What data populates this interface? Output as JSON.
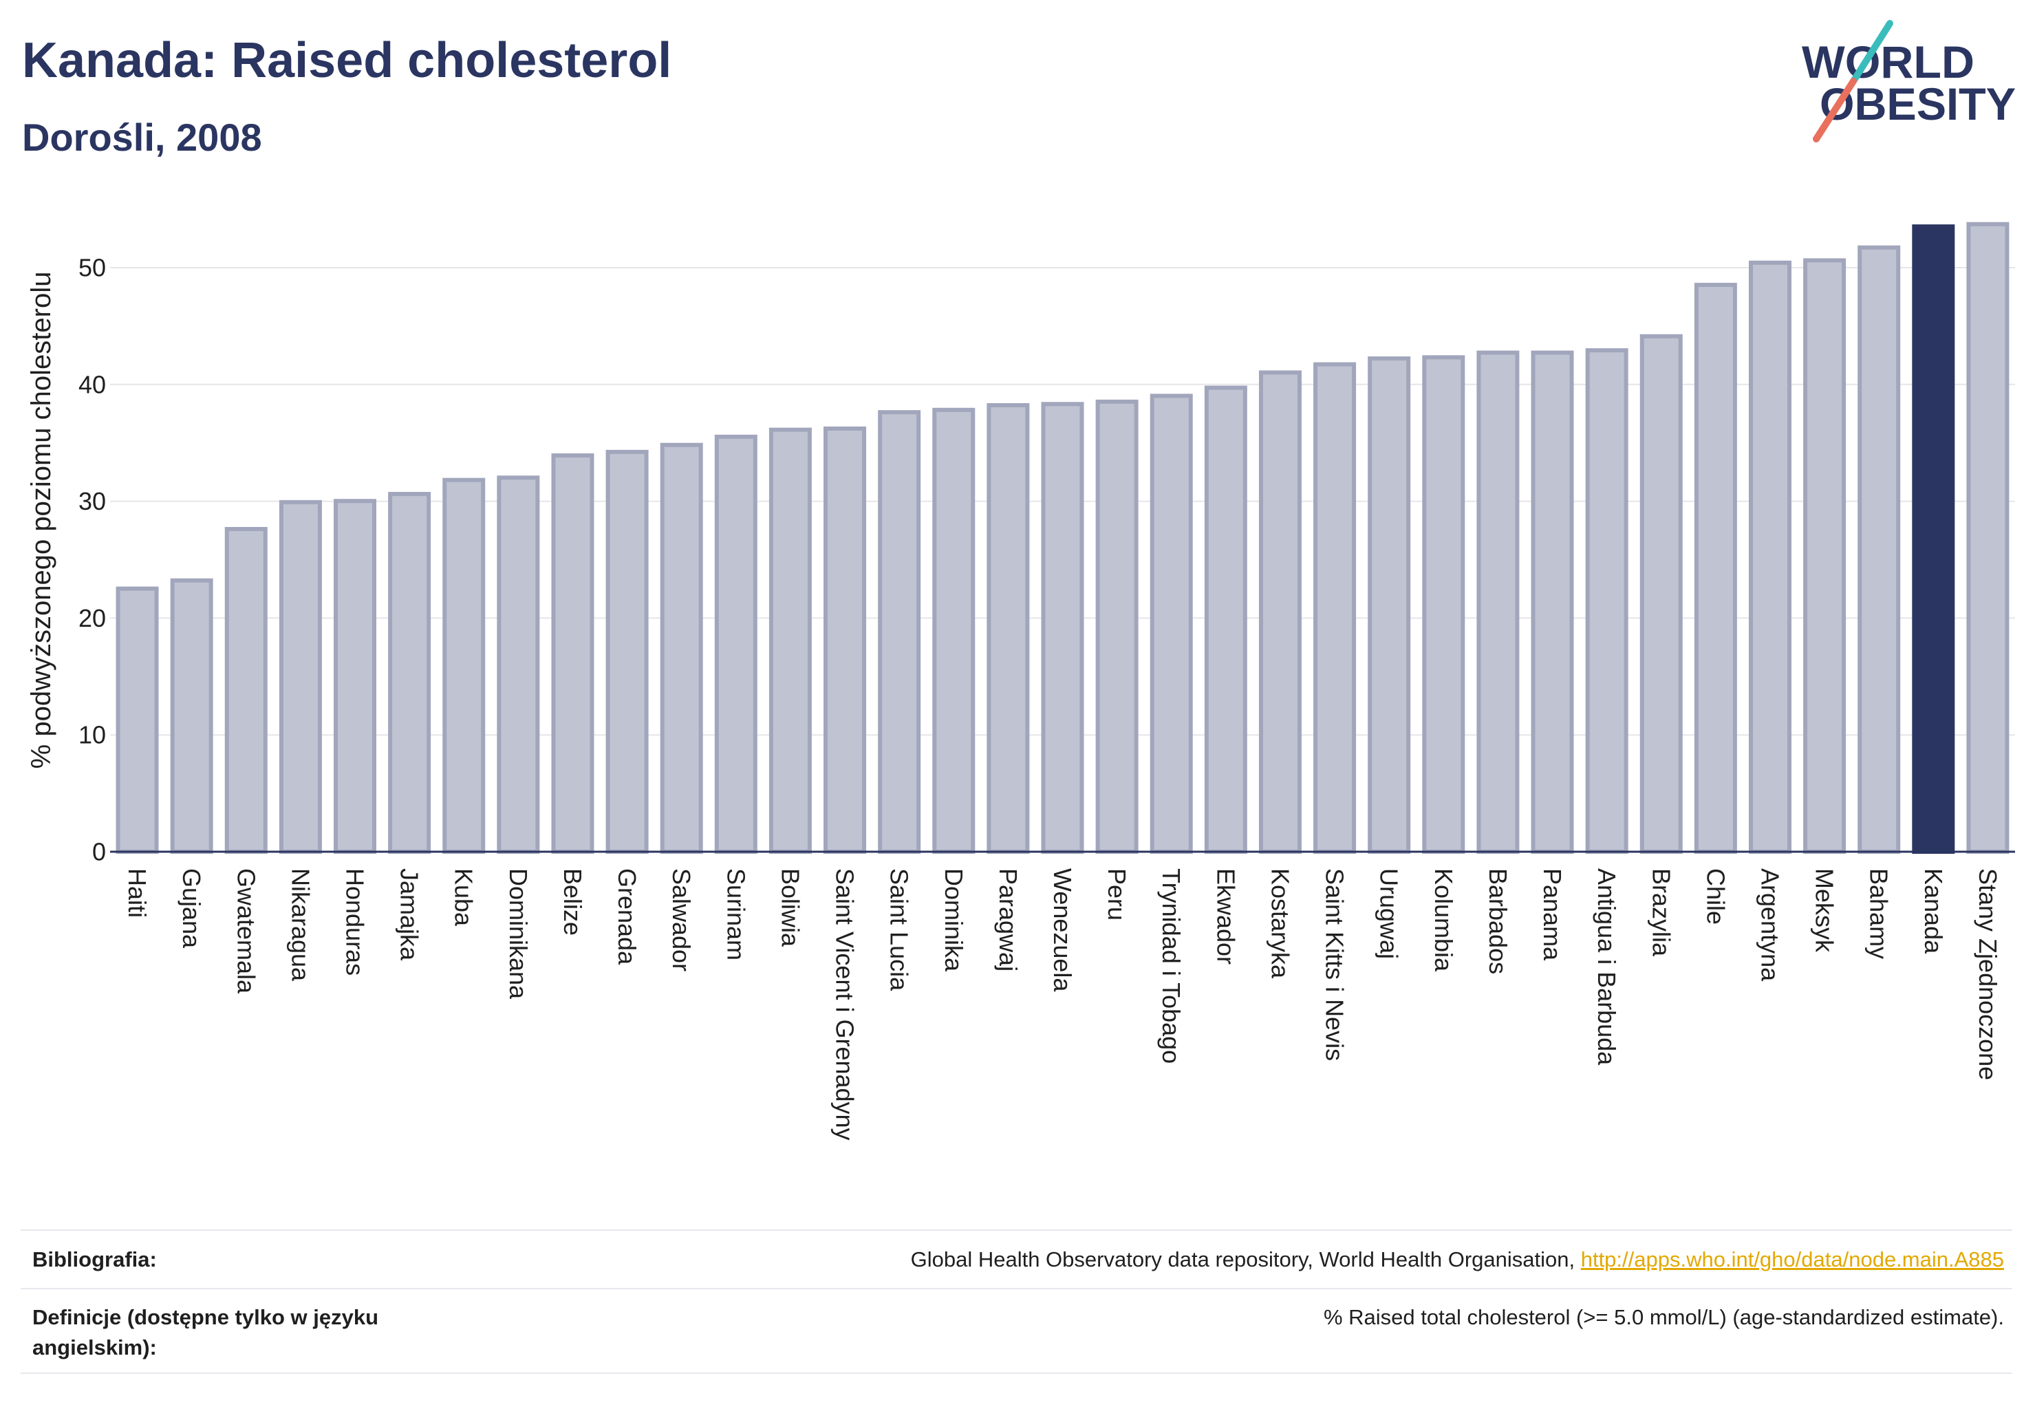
{
  "header": {
    "title": "Kanada: Raised cholesterol",
    "subtitle": "Dorośli, 2008"
  },
  "logo": {
    "line1": "WORLD",
    "line2": "OBESITY"
  },
  "chart_data": {
    "type": "bar",
    "categories": [
      "Haiti",
      "Gujana",
      "Gwatemala",
      "Nikaragua",
      "Honduras",
      "Jamajka",
      "Kuba",
      "Dominikana",
      "Belize",
      "Grenada",
      "Salwador",
      "Surinam",
      "Boliwia",
      "Saint Vicent i Grenadyny",
      "Saint Lucia",
      "Dominika",
      "Paragwaj",
      "Wenezuela",
      "Peru",
      "Trynidad i Tobago",
      "Ekwador",
      "Kostaryka",
      "Saint Kitts i Nevis",
      "Urugwaj",
      "Kolumbia",
      "Barbados",
      "Panama",
      "Antigua i Barbuda",
      "Brazylia",
      "Chile",
      "Argentyna",
      "Meksyk",
      "Bahamy",
      "Kanada",
      "Stany Zjednoczone"
    ],
    "values": [
      22.7,
      23.4,
      27.8,
      30.1,
      30.2,
      30.8,
      32.0,
      32.2,
      34.1,
      34.4,
      35.0,
      35.7,
      36.3,
      36.4,
      37.8,
      38.0,
      38.4,
      38.5,
      38.7,
      39.2,
      39.9,
      41.2,
      41.9,
      42.4,
      42.5,
      42.9,
      42.9,
      43.1,
      44.3,
      48.7,
      50.6,
      50.8,
      51.9,
      53.7,
      53.9
    ],
    "bar_colors": [
      "#c0c3d1",
      "#c0c3d1",
      "#c0c3d1",
      "#c0c3d1",
      "#c0c3d1",
      "#c0c3d1",
      "#c0c3d1",
      "#c0c3d1",
      "#c0c3d1",
      "#c0c3d1",
      "#c0c3d1",
      "#c0c3d1",
      "#c0c3d1",
      "#c0c3d1",
      "#c0c3d1",
      "#c0c3d1",
      "#c0c3d1",
      "#c0c3d1",
      "#c0c3d1",
      "#c0c3d1",
      "#c0c3d1",
      "#c0c3d1",
      "#c0c3d1",
      "#c0c3d1",
      "#c0c3d1",
      "#c0c3d1",
      "#c0c3d1",
      "#c0c3d1",
      "#c0c3d1",
      "#c0c3d1",
      "#c0c3d1",
      "#c0c3d1",
      "#c0c3d1",
      "#2b3561",
      "#c0c3d1"
    ],
    "ylabel": "% podwyższonego poziomu cholesterolu",
    "ylim": [
      0,
      56
    ],
    "yticks": [
      0,
      10,
      20,
      30,
      40,
      50
    ],
    "grid": true,
    "legend": "none",
    "colors": {
      "bar": "#c0c3d1",
      "bar_border": "#a1a6bc",
      "highlight": "#2b3561",
      "axis": "#2b3561",
      "grid": "#e6e6ea"
    }
  },
  "footer": {
    "bibliography_label": "Bibliografia:",
    "bibliography_text": "Global Health Observatory data repository, World Health Organisation,",
    "bibliography_link": "http://apps.who.int/gho/data/node.main.A885",
    "definitions_label": "Definicje (dostępne tylko w języku angielskim):",
    "definitions_text": "% Raised total cholesterol (>= 5.0 mmol/L) (age-standardized estimate)."
  },
  "colors": {
    "brand_navy": "#2b3561",
    "link": "#e2a800",
    "logo_teal": "#3bbcbc",
    "logo_coral": "#e8705d"
  }
}
